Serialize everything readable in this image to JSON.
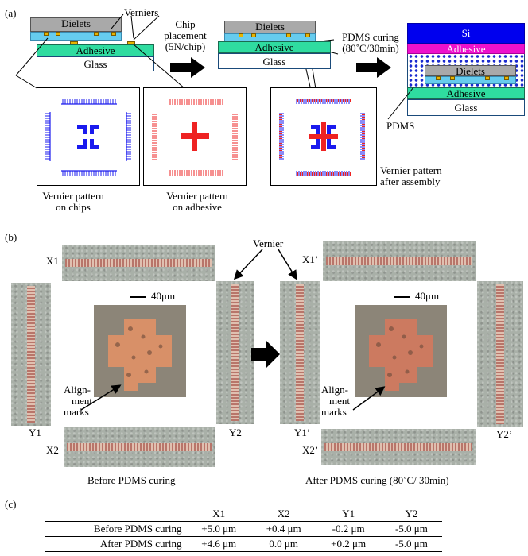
{
  "panel_a": {
    "label": "(a)",
    "stack1": {
      "dielets": "Dielets",
      "adhesive": "Adhesive",
      "glass": "Glass"
    },
    "verniers_label": "Verniers",
    "step1_label": "Chip placement (5N/chip)",
    "step1_lines": [
      "Chip",
      "placement",
      "(5N/chip)"
    ],
    "stack2": {
      "dielets": "Dielets",
      "adhesive": "Adhesive",
      "glass": "Glass"
    },
    "step2_lines": [
      "PDMS curing",
      "(80˚C/30min)"
    ],
    "stack3": {
      "si": "Si",
      "adhesive_top": "Adhesive",
      "dielets": "Dielets",
      "adhesive": "Adhesive",
      "glass": "Glass"
    },
    "pdms_label": "PDMS",
    "caption_chips": [
      "Vernier pattern",
      "on chips"
    ],
    "caption_adhesive": [
      "Vernier pattern",
      "on adhesive"
    ],
    "caption_assembly": [
      "Vernier pattern",
      "after assembly"
    ],
    "colors": {
      "chip_pattern": "#1a1aee",
      "adhesive_pattern": "#ee2222"
    }
  },
  "panel_b": {
    "label": "(b)",
    "vernier_label": "Vernier",
    "scale_label": "40μm",
    "scale_label_2": "40μm",
    "marks_label": [
      "Align-",
      "ment",
      "marks"
    ],
    "marks_label_2": [
      "Align-",
      "ment",
      "marks"
    ],
    "before": {
      "x1": "X1",
      "x2": "X2",
      "y1": "Y1",
      "y2": "Y2",
      "caption": "Before PDMS curing"
    },
    "after": {
      "x1": "X1’",
      "x2": "X2’",
      "y1": "Y1’",
      "y2": "Y2’",
      "caption": "After PDMS curing (80˚C/ 30min)"
    }
  },
  "panel_c": {
    "label": "(c)",
    "headers": [
      "",
      "X1",
      "X2",
      "Y1",
      "Y2"
    ],
    "rows": [
      [
        "Before PDMS curing",
        "+5.0 μm",
        "+0.4 μm",
        "-0.2 μm",
        "-5.0 μm"
      ],
      [
        "After PDMS curing",
        "+4.6 μm",
        "0.0 μm",
        "+0.2 μm",
        "-5.0 μm"
      ]
    ]
  }
}
